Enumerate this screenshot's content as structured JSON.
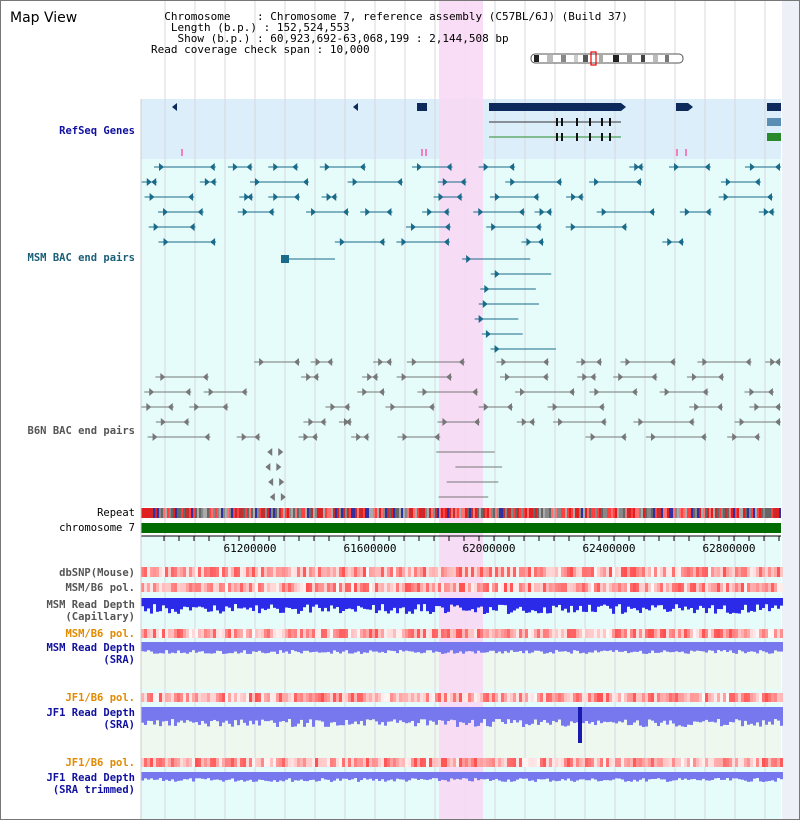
{
  "title": "Map View",
  "header": {
    "chromosome_key": "Chromosome",
    "chromosome_val": "Chromosome 7, reference assembly (C57BL/6J) (Build 37)",
    "length_key": "Length (b.p.)",
    "length_val": "152,524,553",
    "show_key": "Show (b.p.)",
    "show_val": "60,923,692-63,068,199 : 2,144,508 bp",
    "span_key": "Read coverage check span",
    "span_val": "10,000"
  },
  "tracks": {
    "refseq": "RefSeq Genes",
    "msm_bac": "MSM BAC end pairs",
    "b6n_bac": "B6N BAC end pairs",
    "repeat": "Repeat",
    "chromosome": "chromosome 7",
    "dbsnp": "dbSNP(Mouse)",
    "msm_b6_pol": "MSM/B6 pol.",
    "msm_depth_cap_1": "MSM Read Depth",
    "msm_depth_cap_2": "(Capillary)",
    "msm_b6_pol_sra": "MSM/B6 pol.",
    "msm_depth_sra_1": "MSM Read Depth",
    "msm_depth_sra_2": "(SRA)",
    "jf1_b6_pol": "JF1/B6 pol.",
    "jf1_depth_sra_1": "JF1 Read Depth",
    "jf1_depth_sra_2": "(SRA)",
    "jf1_b6_pol_trim": "JF1/B6 pol.",
    "jf1_depth_trim_1": "JF1 Read Depth",
    "jf1_depth_trim_2": "(SRA trimmed)"
  },
  "ruler": [
    "61200000",
    "61600000",
    "62000000",
    "62400000",
    "62800000"
  ],
  "colors": {
    "highlight": "#f8d8f4",
    "refseq_bg": "#dbeef9",
    "track_bg": "#e6fcfa",
    "chromosome": "#006b00",
    "depth_blue": "#2a2ae8",
    "depth_light": "#7777ee",
    "pol_red": "#ee3333"
  }
}
